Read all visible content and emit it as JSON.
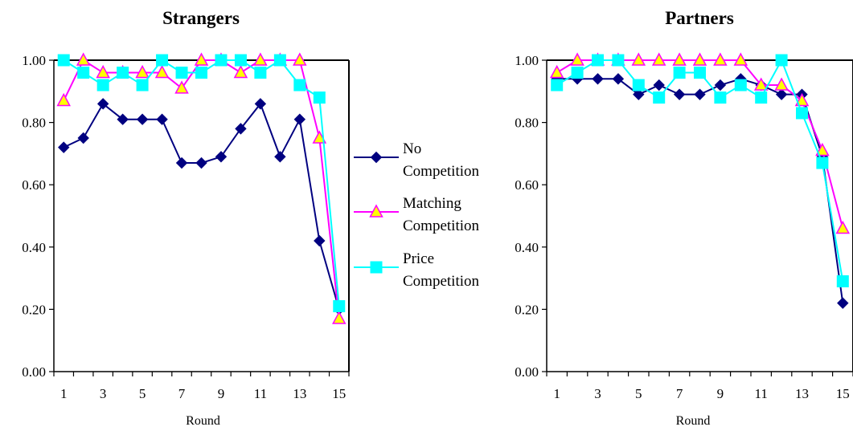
{
  "chart_data": [
    {
      "type": "line",
      "title": "Strangers",
      "xlabel": "Round",
      "ylabel": "",
      "ylim": [
        0,
        1
      ],
      "y_ticks": [
        "0.00",
        "0.20",
        "0.40",
        "0.60",
        "0.80",
        "1.00"
      ],
      "x": [
        1,
        2,
        3,
        4,
        5,
        6,
        7,
        8,
        9,
        10,
        11,
        12,
        13,
        14,
        15
      ],
      "x_tick_labels": [
        "1",
        "3",
        "5",
        "7",
        "9",
        "11",
        "13",
        "15"
      ],
      "grid": false,
      "series": [
        {
          "name": "No Competition",
          "color": "#000080",
          "marker": "diamond",
          "values": [
            0.72,
            0.75,
            0.86,
            0.81,
            0.81,
            0.81,
            0.67,
            0.67,
            0.69,
            0.78,
            0.86,
            0.69,
            0.81,
            0.42,
            0.2
          ]
        },
        {
          "name": "Matching Competition",
          "color": "#ff00ff",
          "marker": "triangle",
          "marker_fill": "#ffff00",
          "values": [
            0.87,
            1.0,
            0.96,
            0.96,
            0.96,
            0.96,
            0.91,
            1.0,
            1.0,
            0.96,
            1.0,
            1.0,
            1.0,
            0.75,
            0.17
          ]
        },
        {
          "name": "Price Competition",
          "color": "#00ffff",
          "marker": "square",
          "values": [
            1.0,
            0.96,
            0.92,
            0.96,
            0.92,
            1.0,
            0.96,
            0.96,
            1.0,
            1.0,
            0.96,
            1.0,
            0.92,
            0.88,
            0.21
          ]
        }
      ]
    },
    {
      "type": "line",
      "title": "Partners",
      "xlabel": "Round",
      "ylabel": "",
      "ylim": [
        0,
        1
      ],
      "y_ticks": [
        "0.00",
        "0.20",
        "0.40",
        "0.60",
        "0.80",
        "1.00"
      ],
      "x": [
        1,
        2,
        3,
        4,
        5,
        6,
        7,
        8,
        9,
        10,
        11,
        12,
        13,
        14,
        15
      ],
      "x_tick_labels": [
        "1",
        "3",
        "5",
        "7",
        "9",
        "11",
        "13",
        "15"
      ],
      "grid": false,
      "series": [
        {
          "name": "No Competition",
          "color": "#000080",
          "marker": "diamond",
          "values": [
            0.94,
            0.94,
            0.94,
            0.94,
            0.89,
            0.92,
            0.89,
            0.89,
            0.92,
            0.94,
            0.92,
            0.89,
            0.89,
            0.69,
            0.22
          ]
        },
        {
          "name": "Matching Competition",
          "color": "#ff00ff",
          "marker": "triangle",
          "marker_fill": "#ffff00",
          "values": [
            0.96,
            1.0,
            1.0,
            1.0,
            1.0,
            1.0,
            1.0,
            1.0,
            1.0,
            1.0,
            0.92,
            0.92,
            0.87,
            0.71,
            0.46
          ]
        },
        {
          "name": "Price Competition",
          "color": "#00ffff",
          "marker": "square",
          "values": [
            0.92,
            0.96,
            1.0,
            1.0,
            0.92,
            0.88,
            0.96,
            0.96,
            0.88,
            0.92,
            0.88,
            1.0,
            0.83,
            0.67,
            0.29
          ]
        }
      ]
    }
  ],
  "legend": {
    "placement": "between-charts",
    "items": [
      {
        "line1": "No",
        "line2": "Competition",
        "color": "#000080",
        "marker": "diamond"
      },
      {
        "line1": "Matching",
        "line2": "Competition",
        "color": "#ff00ff",
        "marker": "triangle",
        "marker_fill": "#ffff00"
      },
      {
        "line1": "Price",
        "line2": "Competition",
        "color": "#00ffff",
        "marker": "square"
      }
    ]
  }
}
